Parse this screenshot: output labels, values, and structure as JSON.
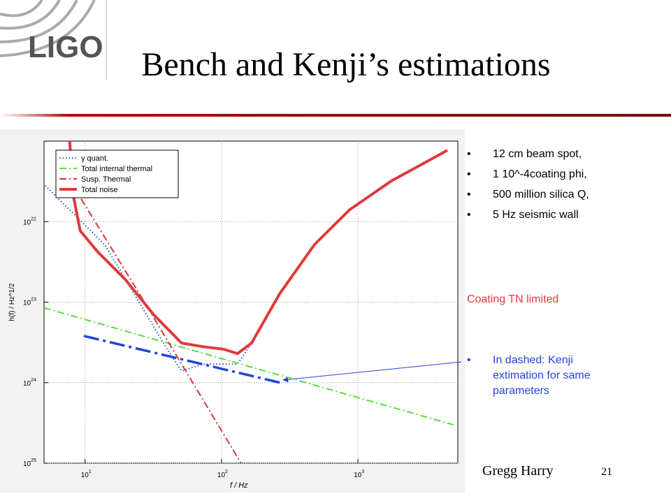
{
  "slide": {
    "logo": "LIGO",
    "title": "Bench and Kenji’s estimations",
    "bullets": [
      "12 cm beam spot,",
      "1 10^-4coating phi,",
      "500 million silica Q,",
      "5 Hz seismic wall"
    ],
    "note": "Coating TN limited",
    "bullet2": [
      "In dashed: Kenji",
      "extimation for same",
      "parameters"
    ],
    "author": "Gregg Harry",
    "page": "21"
  },
  "chart_data": {
    "type": "line",
    "xlabel": "f / Hz",
    "ylabel": "h(f) / Hz^1/2",
    "xlog": true,
    "ylog": true,
    "grid": true,
    "xlim": [
      5,
      5400
    ],
    "ylim": [
      1e-25,
      1e-21
    ],
    "xticks": [
      {
        "value": 10,
        "label": "10",
        "exp": "1"
      },
      {
        "value": 100,
        "label": "10",
        "exp": "2"
      },
      {
        "value": 1000,
        "label": "10",
        "exp": "3"
      }
    ],
    "yticks": [
      {
        "value": 1e-25,
        "label": "10",
        "exp": "25"
      },
      {
        "value": 1e-24,
        "label": "10",
        "exp": "24"
      },
      {
        "value": 1e-23,
        "label": "10",
        "exp": "23"
      },
      {
        "value": 1e-22,
        "label": "10",
        "exp": "22"
      }
    ],
    "legend": "upper left",
    "series": [
      {
        "name": "γ quant.",
        "color": "#1a5fd6",
        "style": "dotted",
        "width": 2,
        "x": [
          5.1,
          13.9,
          40,
          51,
          73,
          131,
          166
        ],
        "values": [
          2.8e-22,
          5.2e-23,
          2.6e-24,
          1.4e-24,
          1.7e-24,
          1.7e-24,
          3.1e-24
        ]
      },
      {
        "name": "Total internal thermal",
        "color": "#55dd33",
        "style": "dashdot",
        "width": 2,
        "x": [
          5,
          5000
        ],
        "values": [
          8.5e-24,
          3e-25
        ]
      },
      {
        "name": "Susp. Thermal",
        "color": "#dd3333",
        "style": "dashdot",
        "width": 2,
        "x": [
          7.3,
          25,
          51,
          139
        ],
        "values": [
          3.8e-22,
          1.27e-23,
          1.7e-24,
          1e-25
        ]
      },
      {
        "name": "Total noise",
        "color": "#e03a3a",
        "style": "solid",
        "width": 4,
        "x": [
          7.7,
          8.2,
          9.2,
          12.4,
          19.8,
          31.8,
          51,
          73,
          104,
          131,
          166,
          267,
          481,
          867,
          1760,
          4530
        ],
        "values": [
          1.04e-21,
          2.1e-22,
          7.7e-23,
          4.2e-23,
          1.9e-23,
          7e-24,
          3.1e-24,
          2.8e-24,
          2.6e-24,
          2.3e-24,
          3.1e-24,
          1.27e-23,
          5.2e-23,
          1.4e-22,
          3.2e-22,
          7.7e-22
        ]
      },
      {
        "color": "#2244dd",
        "style": "dashed",
        "width": 3.5,
        "x": [
          9.8,
          283
        ],
        "values": [
          3.8e-24,
          9.8e-25
        ]
      }
    ]
  }
}
